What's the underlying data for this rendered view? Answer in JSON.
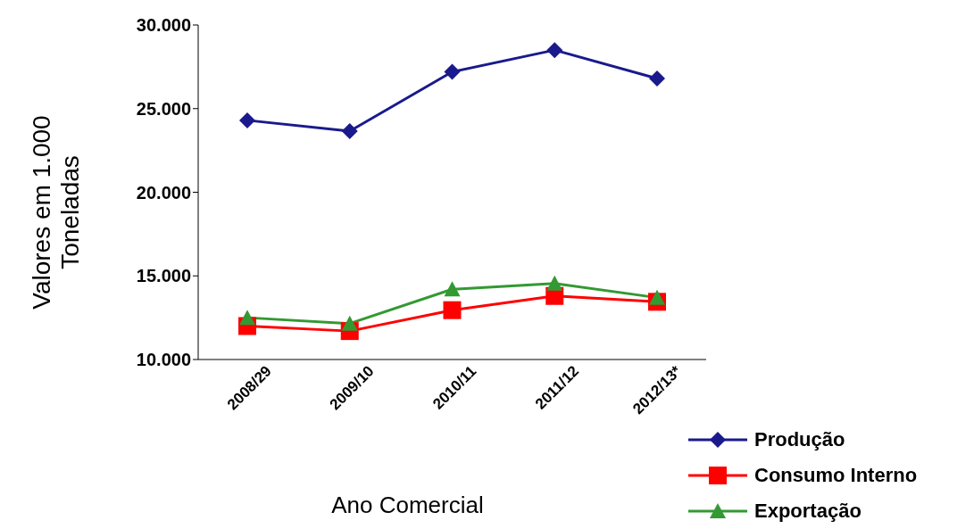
{
  "chart_data": {
    "type": "line",
    "xlabel": "Ano Comercial",
    "ylabel": "Valores em 1.000 Toneladas",
    "categories": [
      "2008/29",
      "2009/10",
      "2010/11",
      "2011/12",
      "2012/13*"
    ],
    "series": [
      {
        "name": "Produção",
        "color": "#1a1a8c",
        "marker": "diamond",
        "values": [
          24300,
          23650,
          27200,
          28500,
          26800
        ]
      },
      {
        "name": "Consumo Interno",
        "color": "#ff0000",
        "marker": "square",
        "values": [
          12000,
          11700,
          12950,
          13800,
          13450
        ]
      },
      {
        "name": "Exportação",
        "color": "#339933",
        "marker": "triangle",
        "values": [
          12500,
          12150,
          14200,
          14550,
          13700
        ]
      }
    ],
    "ylim": [
      10000,
      30000
    ],
    "yticks": [
      {
        "value": 10000,
        "label": "10.000"
      },
      {
        "value": 15000,
        "label": "15.000"
      },
      {
        "value": 20000,
        "label": "20.000"
      },
      {
        "value": 25000,
        "label": "25.000"
      },
      {
        "value": 30000,
        "label": "30.000"
      }
    ],
    "grid": false,
    "legend": "bottom right"
  }
}
